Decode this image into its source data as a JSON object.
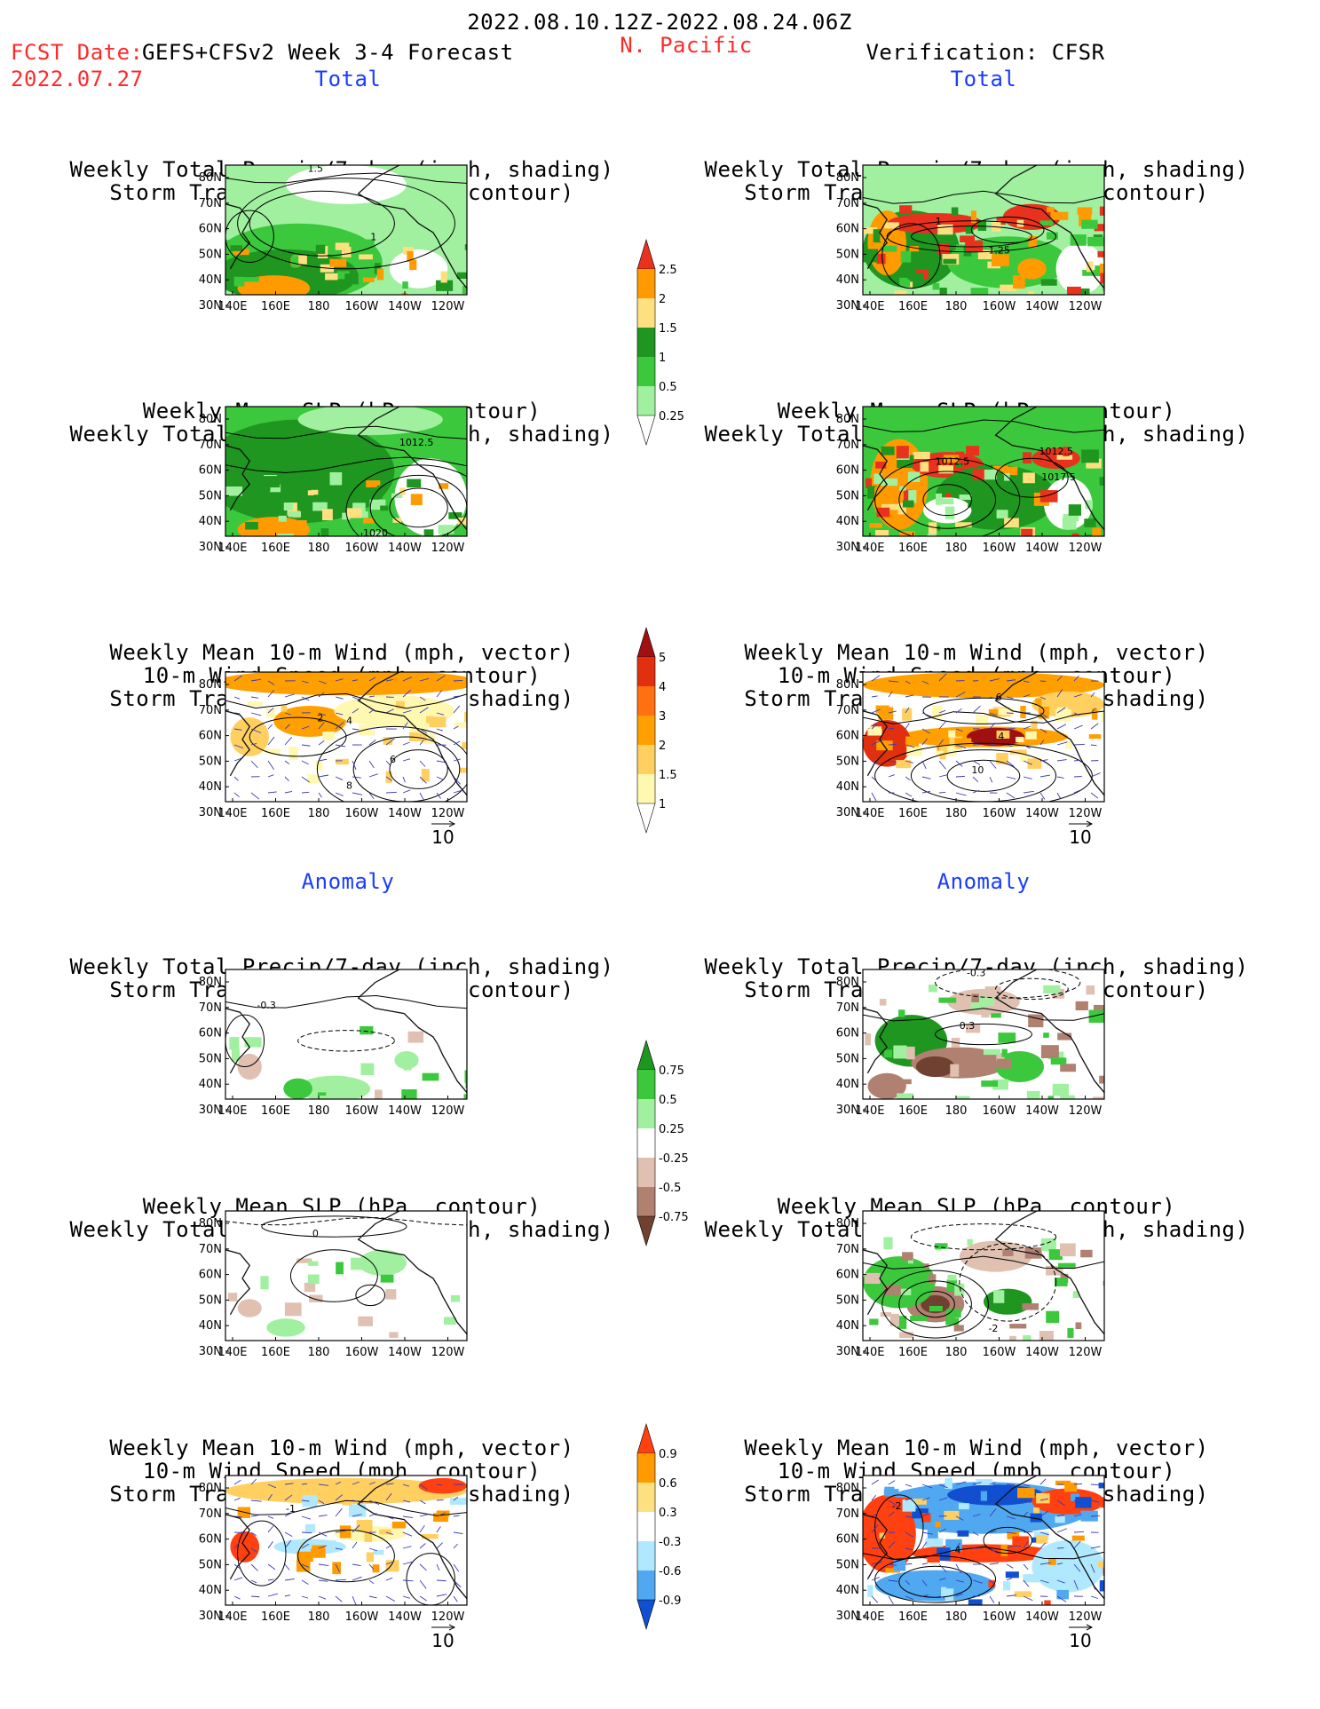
{
  "header": {
    "date_range": "2022.08.10.12Z-2022.08.24.06Z",
    "fcst_label": "FCST Date:",
    "fcst_model": "GEFS+CFSv2 Week 3-4 Forecast",
    "region": "N. Pacific",
    "fcst_date": "2022.07.27",
    "verification": "Verification: CFSR"
  },
  "sections": {
    "total_left": "Total",
    "total_right": "Total",
    "anomaly_left": "Anomaly",
    "anomaly_right": "Anomaly"
  },
  "titles": {
    "precip_storm": [
      "Weekly Total Precip/7-day (inch, shading)",
      "Storm Track Density/7-day (contour)"
    ],
    "slp_precip": [
      "Weekly Mean SLP (hPa, contour)",
      "Weekly Total Precip/7-day (inch, shading)"
    ],
    "wind_storm": [
      "Weekly Mean 10-m Wind (mph, vector)",
      "10-m Wind Speed (mph, contour)",
      "Storm Track Density/7-day (shading)"
    ]
  },
  "axes": {
    "lat_labels": [
      "80N",
      "70N",
      "60N",
      "50N",
      "40N",
      "30N"
    ],
    "lon_labels": [
      "140E",
      "160E",
      "180",
      "160W",
      "140W",
      "120W"
    ]
  },
  "vector_ref": "10",
  "contour_labels": {
    "p1": [
      "1.5",
      "1"
    ],
    "p2": [
      "1",
      "1.25"
    ],
    "p3": [
      "1012.5",
      "1020"
    ],
    "p4": [
      "1012.5",
      "1012.5",
      "1017.5"
    ],
    "p5": [
      "2",
      "4",
      "6",
      "8"
    ],
    "p6": [
      "6",
      "4",
      "10"
    ],
    "p7": [
      "-0.3"
    ],
    "p8": [
      "-0.3",
      "0.3"
    ],
    "p9": [
      "0"
    ],
    "p10": [
      "-2"
    ],
    "p11": [
      "-1"
    ],
    "p12": [
      "-2",
      "4"
    ]
  },
  "colorbars": {
    "precip_total": {
      "labels": [
        "2.5",
        "2",
        "1.5",
        "1",
        "0.5",
        "0.25"
      ],
      "colors": [
        "#e8321e",
        "#ff9a00",
        "#ffe080",
        "#1e9620",
        "#3cc83c",
        "#a0f0a0"
      ]
    },
    "storm_total": {
      "labels": [
        "5",
        "4",
        "3",
        "2",
        "1.5",
        "1"
      ],
      "colors": [
        "#a01010",
        "#e03010",
        "#ff7010",
        "#ffa000",
        "#ffd060",
        "#fff8b0"
      ]
    },
    "precip_anom": {
      "labels": [
        "0.75",
        "0.5",
        "0.25",
        "-0.25",
        "-0.5",
        "-0.75"
      ],
      "colors": [
        "#1e9620",
        "#3cc83c",
        "#a0f0a0",
        "#ffffff",
        "#e0c0b0",
        "#b08070",
        "#704030"
      ]
    },
    "storm_anom": {
      "labels": [
        "0.9",
        "0.6",
        "0.3",
        "-0.3",
        "-0.6",
        "-0.9"
      ],
      "colors": [
        "#ff4010",
        "#ff9a00",
        "#ffe080",
        "#ffffff",
        "#b0e8ff",
        "#50a8f0",
        "#1050d0"
      ]
    }
  }
}
